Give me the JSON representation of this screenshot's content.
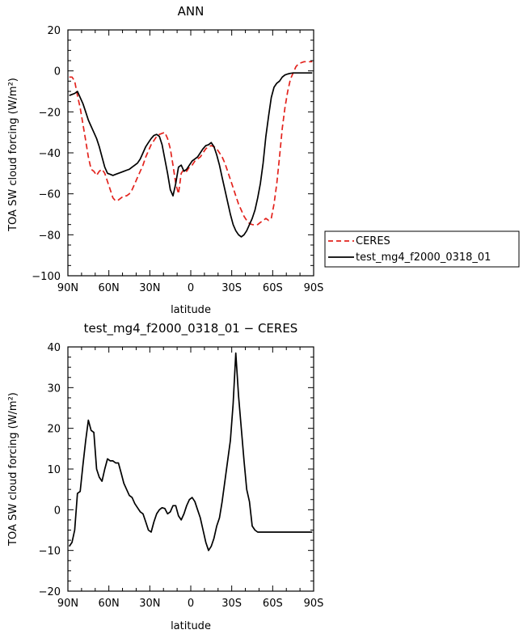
{
  "chart_data": [
    {
      "type": "line",
      "title": "ANN",
      "xlabel": "latitude",
      "ylabel": "TOA SW cloud forcing (W/m²)",
      "xlim": [
        90,
        -90
      ],
      "ylim": [
        -100,
        20
      ],
      "xticks": [
        90,
        60,
        30,
        0,
        -30,
        -60,
        -90
      ],
      "xticklabels": [
        "90N",
        "60N",
        "30N",
        "0",
        "30S",
        "60S",
        "90S"
      ],
      "yticks": [
        -100,
        -80,
        -60,
        -40,
        -20,
        0,
        20
      ],
      "yticklabels": [
        "−100",
        "−80",
        "−60",
        "−40",
        "−20",
        "0",
        "20"
      ],
      "legend": "outside-right",
      "series": [
        {
          "name": "CERES",
          "color": "#e3231d",
          "style": "dashed",
          "x": [
            89,
            87,
            85,
            83,
            81,
            79,
            77,
            75,
            73,
            71,
            69,
            67,
            65,
            63,
            61,
            59,
            57,
            55,
            53,
            51,
            49,
            47,
            45,
            43,
            41,
            39,
            37,
            35,
            33,
            31,
            29,
            27,
            25,
            23,
            21,
            19,
            17,
            15,
            13,
            11,
            9,
            7,
            5,
            3,
            1,
            -1,
            -3,
            -5,
            -7,
            -9,
            -11,
            -13,
            -15,
            -17,
            -19,
            -21,
            -23,
            -25,
            -27,
            -29,
            -31,
            -33,
            -35,
            -37,
            -39,
            -41,
            -43,
            -45,
            -47,
            -49,
            -51,
            -53,
            -55,
            -57,
            -59,
            -61,
            -63,
            -65,
            -67,
            -69,
            -71,
            -73,
            -75,
            -77,
            -79,
            -81,
            -83,
            -85,
            -87,
            -89
          ],
          "y": [
            -3,
            -3,
            -5,
            -12,
            -18,
            -26,
            -34,
            -42,
            -48,
            -49,
            -51,
            -49,
            -48,
            -50,
            -54,
            -58,
            -62,
            -63.5,
            -63,
            -62,
            -61,
            -61,
            -60,
            -58,
            -55,
            -52,
            -49,
            -46,
            -42,
            -39,
            -36,
            -34,
            -32,
            -31,
            -30.5,
            -30,
            -33,
            -38,
            -46,
            -55,
            -60,
            -50,
            -48,
            -49,
            -47,
            -46,
            -44,
            -43,
            -42,
            -40,
            -38,
            -37,
            -36.5,
            -37,
            -38,
            -40,
            -42,
            -45,
            -49,
            -53,
            -57,
            -61,
            -65,
            -68,
            -71,
            -73,
            -74.5,
            -75,
            -75.2,
            -75,
            -74,
            -73,
            -72,
            -73,
            -72,
            -65,
            -55,
            -42,
            -28,
            -18,
            -10,
            -4,
            -1,
            2,
            3.5,
            4,
            4.5,
            4.5,
            4.5,
            4.5
          ]
        },
        {
          "name": "test_mg4_f2000_0318_01",
          "color": "#000000",
          "style": "solid",
          "x": [
            89,
            87,
            85,
            83,
            81,
            79,
            77,
            75,
            73,
            71,
            69,
            67,
            65,
            63,
            61,
            59,
            57,
            55,
            53,
            51,
            49,
            47,
            45,
            43,
            41,
            39,
            37,
            35,
            33,
            31,
            29,
            27,
            25,
            23,
            21,
            19,
            17,
            15,
            13,
            11,
            9,
            7,
            5,
            3,
            1,
            -1,
            -3,
            -5,
            -7,
            -9,
            -11,
            -13,
            -15,
            -17,
            -19,
            -21,
            -23,
            -25,
            -27,
            -29,
            -31,
            -33,
            -35,
            -37,
            -39,
            -41,
            -43,
            -45,
            -47,
            -49,
            -51,
            -53,
            -55,
            -57,
            -59,
            -61,
            -63,
            -65,
            -67,
            -69,
            -71,
            -73,
            -75,
            -77,
            -79,
            -81,
            -83,
            -85,
            -87,
            -89
          ],
          "y": [
            -12,
            -11.5,
            -11,
            -10,
            -13,
            -16,
            -20,
            -24,
            -27,
            -30,
            -33,
            -37,
            -42,
            -47,
            -50,
            -50.5,
            -51,
            -50.5,
            -50,
            -49.5,
            -49,
            -48.5,
            -48,
            -47,
            -46,
            -45,
            -43,
            -40,
            -37,
            -35,
            -33,
            -31.5,
            -31,
            -32,
            -36,
            -43,
            -50,
            -58,
            -61,
            -55,
            -47,
            -46,
            -49,
            -48,
            -46,
            -44,
            -43,
            -42,
            -40,
            -38,
            -36.5,
            -36,
            -35,
            -37,
            -41,
            -46,
            -52,
            -58,
            -64,
            -70,
            -75,
            -78,
            -80,
            -81,
            -80,
            -78,
            -75,
            -72,
            -68,
            -62,
            -55,
            -45,
            -32,
            -22,
            -13,
            -8,
            -6,
            -5,
            -3,
            -2,
            -1.5,
            -1.2,
            -1,
            -1,
            -1,
            -1,
            -1,
            -1,
            -1,
            -1
          ]
        }
      ]
    },
    {
      "type": "line",
      "title": "test_mg4_f2000_0318_01 − CERES",
      "xlabel": "latitude",
      "ylabel": "TOA SW cloud forcing (W/m²)",
      "xlim": [
        90,
        -90
      ],
      "ylim": [
        -20,
        40
      ],
      "xticks": [
        90,
        60,
        30,
        0,
        -30,
        -60,
        -90
      ],
      "xticklabels": [
        "90N",
        "60N",
        "30N",
        "0",
        "30S",
        "60S",
        "90S"
      ],
      "yticks": [
        -20,
        -10,
        0,
        10,
        20,
        30,
        40
      ],
      "yticklabels": [
        "−20",
        "−10",
        "0",
        "10",
        "20",
        "30",
        "40"
      ],
      "series": [
        {
          "color": "#000000",
          "style": "solid",
          "x": [
            89,
            87,
            85,
            83,
            81,
            79,
            77,
            75,
            73,
            71,
            69,
            67,
            65,
            63,
            61,
            59,
            57,
            55,
            53,
            51,
            49,
            47,
            45,
            43,
            41,
            39,
            37,
            35,
            33,
            31,
            29,
            27,
            25,
            23,
            21,
            19,
            17,
            15,
            13,
            11,
            9,
            7,
            5,
            3,
            1,
            -1,
            -3,
            -5,
            -7,
            -9,
            -11,
            -13,
            -15,
            -17,
            -19,
            -21,
            -23,
            -25,
            -27,
            -29,
            -31,
            -33,
            -35,
            -37,
            -39,
            -41,
            -43,
            -45,
            -47,
            -49,
            -51,
            -53,
            -55,
            -57,
            -59,
            -61,
            -63,
            -65,
            -67,
            -69,
            -71,
            -73,
            -75,
            -77,
            -79,
            -81,
            -83,
            -85,
            -87,
            -89
          ],
          "y": [
            -9,
            -8,
            -5,
            4,
            4.5,
            11,
            17,
            22,
            19.5,
            19,
            10,
            8,
            7,
            10,
            12.5,
            12,
            12,
            11.5,
            11.5,
            9,
            6.5,
            5,
            3.5,
            3,
            1.5,
            0.5,
            -0.5,
            -1,
            -3,
            -5,
            -5.5,
            -3,
            -1,
            0,
            0.5,
            0.3,
            -1,
            -0.5,
            1,
            1,
            -1.5,
            -2.5,
            -1,
            1,
            2.5,
            3,
            2,
            0,
            -2,
            -5,
            -8,
            -10,
            -9,
            -7,
            -4,
            -2,
            2,
            7,
            12,
            17,
            26,
            38.5,
            28,
            20,
            12,
            5,
            2,
            -4,
            -5,
            -5.5,
            -5.5,
            -5.5,
            -5.5,
            -5.5,
            -5.5,
            -5.5,
            -5.5,
            -5.5,
            -5.5,
            -5.5,
            -5.5,
            -5.5,
            -5.5,
            -5.5,
            -5.5,
            -5.5,
            -5.5,
            -5.5,
            -5.5,
            -5.5
          ]
        }
      ]
    }
  ]
}
